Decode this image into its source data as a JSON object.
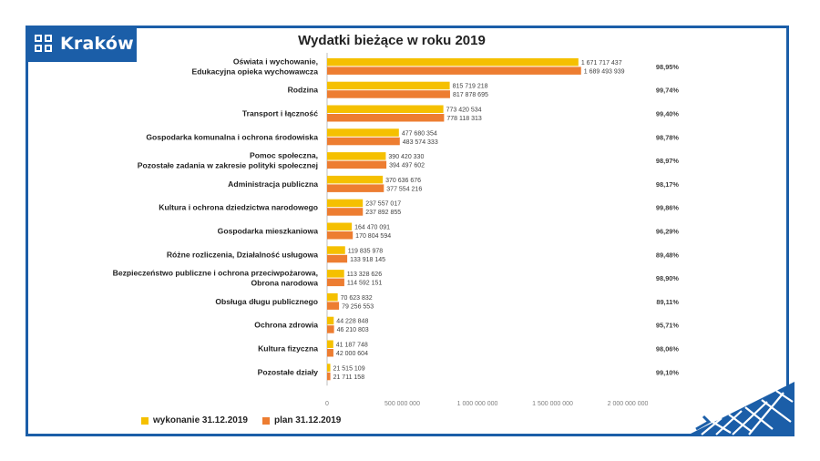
{
  "logo": {
    "text": "Kraków"
  },
  "colors": {
    "wykonanie": "#f5c000",
    "plan": "#ed7d31",
    "brand": "#1b5ea8"
  },
  "chart_data": {
    "type": "bar",
    "orientation": "horizontal",
    "title": "Wydatki bieżące w roku 2019",
    "xlim": [
      0,
      2000000000
    ],
    "x_ticks": [
      0,
      500000000,
      1000000000,
      1500000000,
      2000000000
    ],
    "x_tick_labels": [
      "0",
      "500 000 000",
      "1 000 000 000",
      "1 500 000 000",
      "2 000 000 000"
    ],
    "categories": [
      [
        "Oświata i wychowanie,",
        "Edukacyjna opieka wychowawcza"
      ],
      [
        "Rodzina"
      ],
      [
        "Transport i łączność"
      ],
      [
        "Gospodarka komunalna i ochrona środowiska"
      ],
      [
        "Pomoc społeczna,",
        "Pozostałe zadania w zakresie polityki społecznej"
      ],
      [
        "Administracja publiczna"
      ],
      [
        "Kultura i ochrona dziedzictwa narodowego"
      ],
      [
        "Gospodarka mieszkaniowa"
      ],
      [
        "Różne rozliczenia, Działalność usługowa"
      ],
      [
        "Bezpieczeństwo publiczne i ochrona przeciwpożarowa,",
        "Obrona narodowa"
      ],
      [
        "Obsługa długu publicznego"
      ],
      [
        "Ochrona zdrowia"
      ],
      [
        "Kultura fizyczna"
      ],
      [
        "Pozostałe działy"
      ]
    ],
    "series": [
      {
        "name": "wykonanie 31.12.2019",
        "values": [
          1671717437,
          815719218,
          773420534,
          477680354,
          390420330,
          370636676,
          237557017,
          164470091,
          119835978,
          113328626,
          70623832,
          44228848,
          41187748,
          21515109
        ],
        "labels": [
          "1 671 717 437",
          "815 719 218",
          "773 420 534",
          "477 680 354",
          "390 420 330",
          "370 636 676",
          "237 557 017",
          "164 470 091",
          "119 835 978",
          "113 328 626",
          "70 623 832",
          "44 228 848",
          "41 187 748",
          "21 515 109"
        ]
      },
      {
        "name": "plan 31.12.2019",
        "values": [
          1689493939,
          817878695,
          778118313,
          483574333,
          394497602,
          377554216,
          237892855,
          170804594,
          133918145,
          114592151,
          79256553,
          46210803,
          42000604,
          21711158
        ],
        "labels": [
          "1 689 493 939",
          "817 878 695",
          "778 118 313",
          "483 574 333",
          "394 497 602",
          "377 554 216",
          "237 892 855",
          "170 804 594",
          "133 918 145",
          "114 592 151",
          "79 256 553",
          "46 210 803",
          "42 000 604",
          "21 711 158"
        ]
      }
    ],
    "percentages": [
      "98,95%",
      "99,74%",
      "99,40%",
      "98,78%",
      "98,97%",
      "98,17%",
      "99,86%",
      "96,29%",
      "89,48%",
      "98,90%",
      "89,11%",
      "95,71%",
      "98,06%",
      "99,10%"
    ],
    "legend_position": "bottom-left"
  }
}
